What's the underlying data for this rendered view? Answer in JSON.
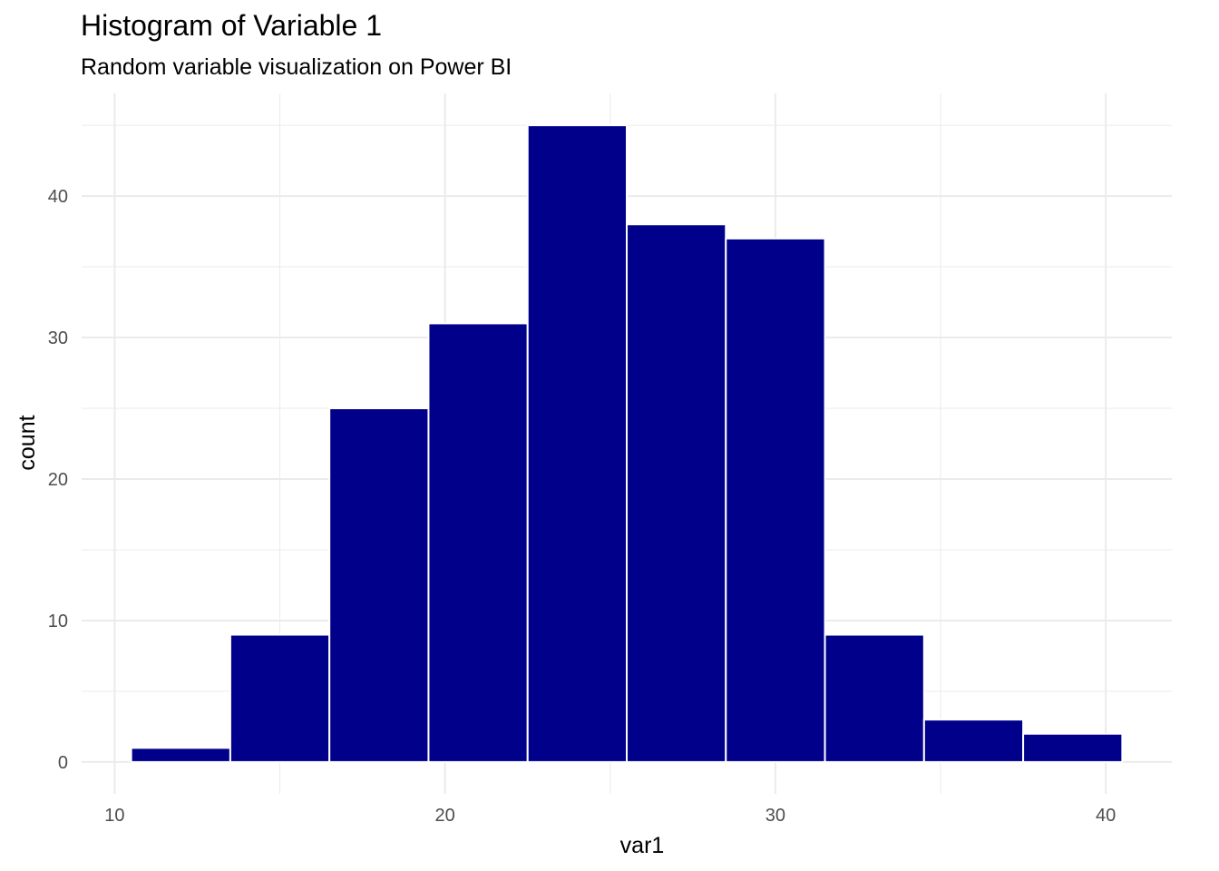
{
  "chart_data": {
    "type": "bar",
    "title": "Histogram of Variable 1",
    "subtitle": "Random variable visualization on Power BI",
    "xlabel": "var1",
    "ylabel": "count",
    "bins": [
      {
        "x0": 10.5,
        "x1": 13.5,
        "count": 1
      },
      {
        "x0": 13.5,
        "x1": 16.5,
        "count": 9
      },
      {
        "x0": 16.5,
        "x1": 19.5,
        "count": 25
      },
      {
        "x0": 19.5,
        "x1": 22.5,
        "count": 31
      },
      {
        "x0": 22.5,
        "x1": 25.5,
        "count": 45
      },
      {
        "x0": 25.5,
        "x1": 28.5,
        "count": 38
      },
      {
        "x0": 28.5,
        "x1": 31.5,
        "count": 37
      },
      {
        "x0": 31.5,
        "x1": 34.5,
        "count": 9
      },
      {
        "x0": 34.5,
        "x1": 37.5,
        "count": 3
      },
      {
        "x0": 37.5,
        "x1": 40.5,
        "count": 2
      }
    ],
    "x_ticks": [
      10,
      20,
      30,
      40
    ],
    "x_tick_labels": [
      "10",
      "20",
      "30",
      "40"
    ],
    "y_ticks": [
      0,
      10,
      20,
      30,
      40
    ],
    "y_tick_labels": [
      "0",
      "10",
      "20",
      "30",
      "40"
    ],
    "xlim": [
      9.0,
      42.0
    ],
    "ylim": [
      -2.25,
      47.25
    ],
    "grid": true,
    "bar_fill": "#00008B",
    "bar_outline": "#FFFFFF",
    "grid_color": "#EBEBEB"
  }
}
